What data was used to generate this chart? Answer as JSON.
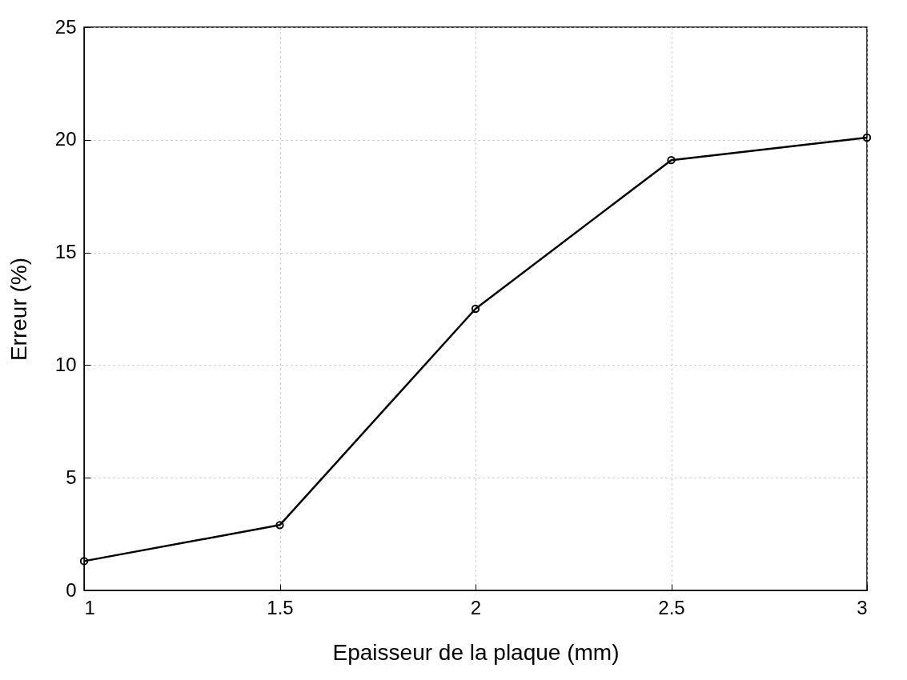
{
  "chart_data": {
    "type": "line",
    "xlabel": "Epaisseur de la plaque (mm)",
    "ylabel": "Erreur (%)",
    "x": [
      1,
      1.5,
      2,
      2.5,
      3
    ],
    "series": [
      {
        "color": "#000000",
        "values": [
          1.3,
          2.9,
          12.5,
          19.1,
          20.1
        ]
      }
    ],
    "xlim": [
      1,
      3
    ],
    "xticks": [
      1,
      1.5,
      2,
      2.5,
      3
    ],
    "ylim": [
      0,
      25
    ],
    "yticks": [
      0,
      5,
      10,
      15,
      20,
      25
    ],
    "grid": true,
    "marker": "circle",
    "line_style": "solid",
    "legend": false
  }
}
